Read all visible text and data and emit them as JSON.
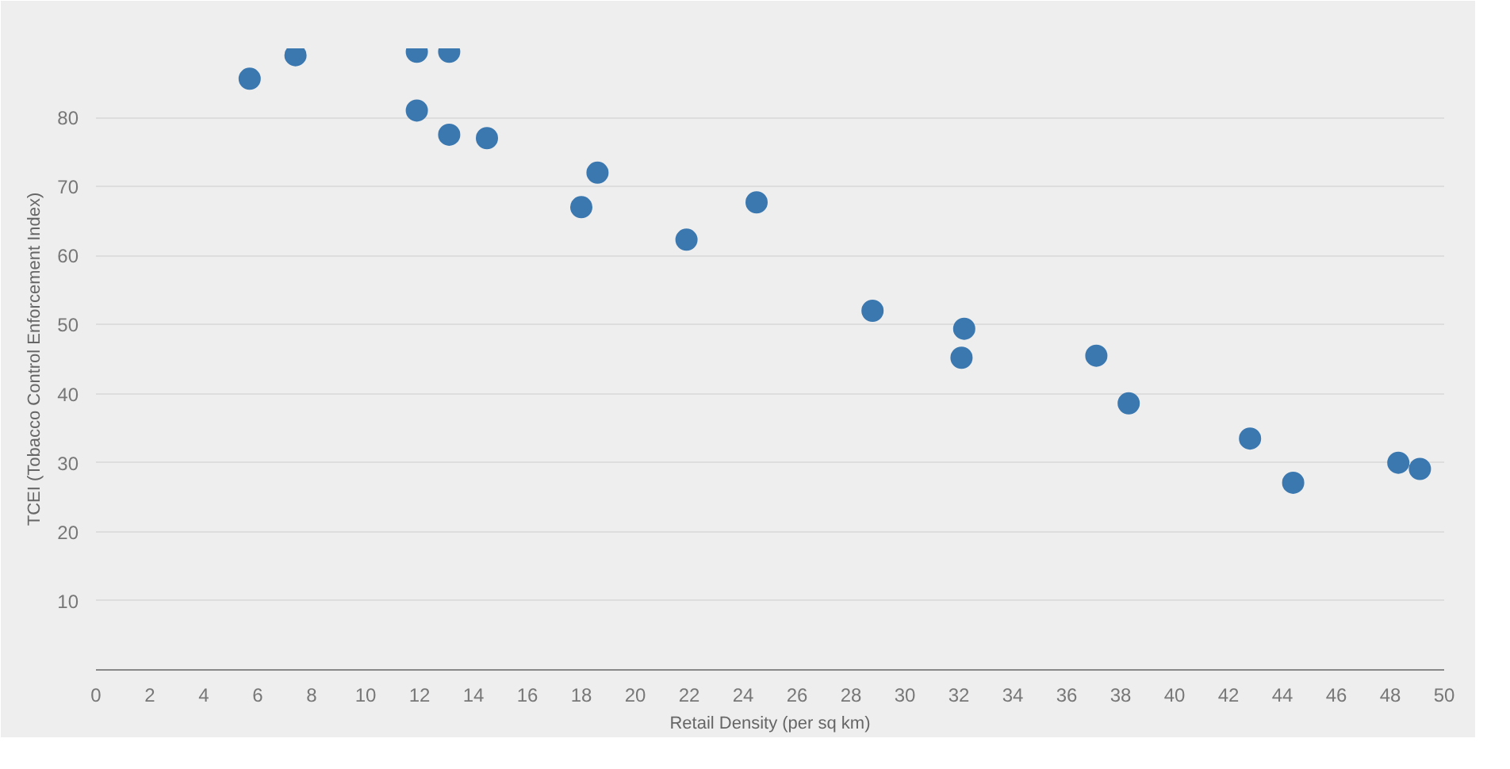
{
  "chart_data": {
    "type": "scatter",
    "xlabel": "Retail Density (per sq km)",
    "ylabel": "TCEI (Tobacco Control Enforcement Index)",
    "x": [
      5.7,
      7.4,
      11.9,
      13.1,
      11.9,
      13.1,
      14.5,
      18.0,
      18.6,
      21.9,
      24.5,
      28.8,
      32.2,
      32.1,
      37.1,
      38.3,
      42.8,
      44.4,
      48.3,
      49.1
    ],
    "series": [
      {
        "color": "#3b78b0",
        "values": [
          85.6,
          89,
          89.5,
          89.5,
          81,
          77.5,
          77,
          67,
          72,
          62.3,
          67.7,
          52,
          49.4,
          45.2,
          45.5,
          38.6,
          33.5,
          27.1,
          30,
          29.1
        ]
      }
    ],
    "xlim": [
      0,
      50
    ],
    "xticks": [
      0,
      2,
      4,
      6,
      8,
      10,
      12,
      14,
      16,
      18,
      20,
      22,
      24,
      26,
      28,
      30,
      32,
      34,
      36,
      38,
      40,
      42,
      44,
      46,
      48,
      50
    ],
    "ylim": [
      0,
      90
    ],
    "yticks": [
      10,
      20,
      30,
      40,
      50,
      60,
      70,
      80,
      {
        "value": 90,
        "label": null
      }
    ],
    "grid": "y",
    "marker": "circle"
  }
}
